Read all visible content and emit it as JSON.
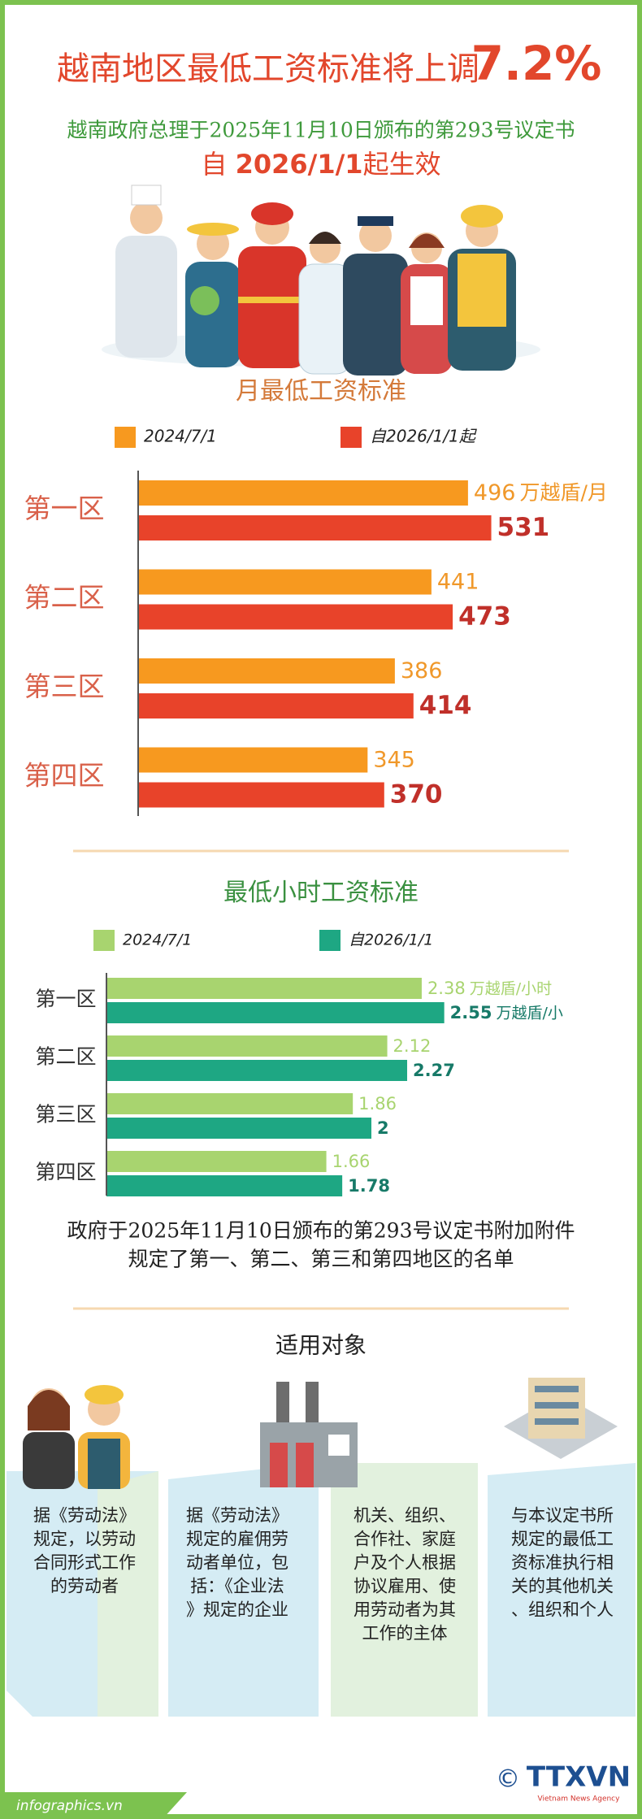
{
  "header": {
    "title": "越南地区最低工资标准将上调",
    "highlight": "7.2%",
    "subtitle": "越南政府总理于2025年11月10日颁布的第293号议定书",
    "effective_prefix": "自 ",
    "effective_date": "2026/1/1",
    "effective_suffix": "起生效"
  },
  "chart_data": [
    {
      "type": "bar",
      "orientation": "horizontal",
      "title": "月最低工资标准",
      "categories": [
        "第一区",
        "第二区",
        "第三区",
        "第四区"
      ],
      "series": [
        {
          "name": "2024/7/1",
          "color": "#f7991f",
          "values": [
            496,
            441,
            386,
            345
          ],
          "unit": "万越盾/月"
        },
        {
          "name": "自2026/1/1起",
          "color": "#e8432a",
          "values": [
            531,
            473,
            414,
            370
          ]
        }
      ],
      "xlim": [
        0,
        600
      ]
    },
    {
      "type": "bar",
      "orientation": "horizontal",
      "title": "最低小时工资标准",
      "categories": [
        "第一区",
        "第二区",
        "第三区",
        "第四区"
      ],
      "series": [
        {
          "name": "2024/7/1",
          "color": "#a8d46f",
          "values": [
            2.38,
            2.12,
            1.86,
            1.66
          ],
          "unit": "万越盾/小时"
        },
        {
          "name": "自2026/1/1",
          "color": "#1ea783",
          "values": [
            2.55,
            2.27,
            2,
            1.78
          ],
          "unit": "万越盾/小"
        }
      ],
      "xlim": [
        0,
        3
      ]
    }
  ],
  "note": [
    "政府于2025年11月10日颁布的第293号议定书附加附件",
    "规定了第一、第二、第三和第四地区的名单"
  ],
  "applicable": {
    "title": "适用对象",
    "items": [
      {
        "lines": [
          "据《劳动法》",
          "规定，以劳动",
          "合同形式工作",
          "的劳动者"
        ]
      },
      {
        "lines": [
          "据《劳动法》",
          "规定的雇佣劳",
          "动者单位，包",
          "括：《企业法",
          "》规定的企业"
        ]
      },
      {
        "lines": [
          "机关、组织、",
          "合作社、家庭",
          "户及个人根据",
          "协议雇用、使",
          "用劳动者为其",
          "工作的主体"
        ]
      },
      {
        "lines": [
          "与本议定书所",
          "规定的最低工",
          "资标准执行相",
          "关的其他机关",
          "、组织和个人"
        ]
      }
    ]
  },
  "footer": {
    "source": "infographics.vn",
    "copyright": "©",
    "logo": "TTXVN",
    "agency": "Vietnam News Agency"
  }
}
